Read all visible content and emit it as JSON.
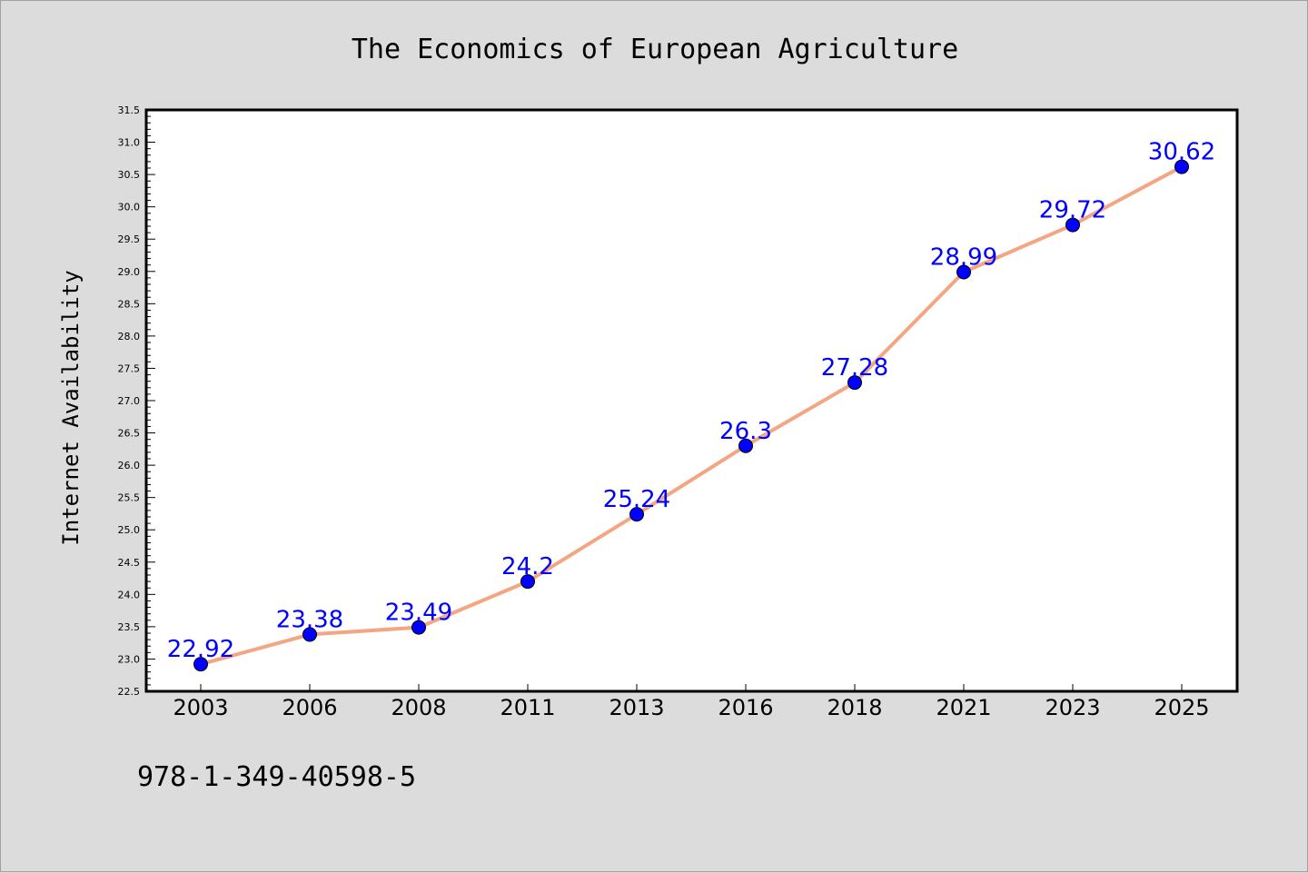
{
  "chart_data": {
    "type": "line",
    "title": "The Economics of European Agriculture",
    "xlabel": "",
    "ylabel": "Internet Availability",
    "categories": [
      "2003",
      "2006",
      "2008",
      "2011",
      "2013",
      "2016",
      "2018",
      "2021",
      "2023",
      "2025"
    ],
    "series": [
      {
        "values": [
          22.92,
          23.38,
          23.49,
          24.2,
          25.24,
          26.3,
          27.28,
          28.99,
          29.72,
          30.62
        ],
        "labels": [
          "22.92",
          "23.38",
          "23.49",
          "24.2",
          "25.24",
          "26.3",
          "27.28",
          "28.99",
          "29.72",
          "30.62"
        ],
        "line_color": "#f4a582",
        "marker_color": "#0000ff",
        "label_color": "#0000ff"
      }
    ],
    "ylim": [
      22.5,
      31.5
    ],
    "yticks": [
      "22.5",
      "23.0",
      "23.5",
      "24.0",
      "24.5",
      "25.0",
      "25.5",
      "26.0",
      "26.5",
      "27.0",
      "27.5",
      "28.0",
      "28.5",
      "29.0",
      "29.5",
      "30.0",
      "30.5",
      "31.0",
      "31.5"
    ],
    "grid": false,
    "legend": "none",
    "background": "#dcdcdc",
    "plot_background": "#ffffff"
  },
  "footer": {
    "isbn": "978-1-349-40598-5"
  }
}
